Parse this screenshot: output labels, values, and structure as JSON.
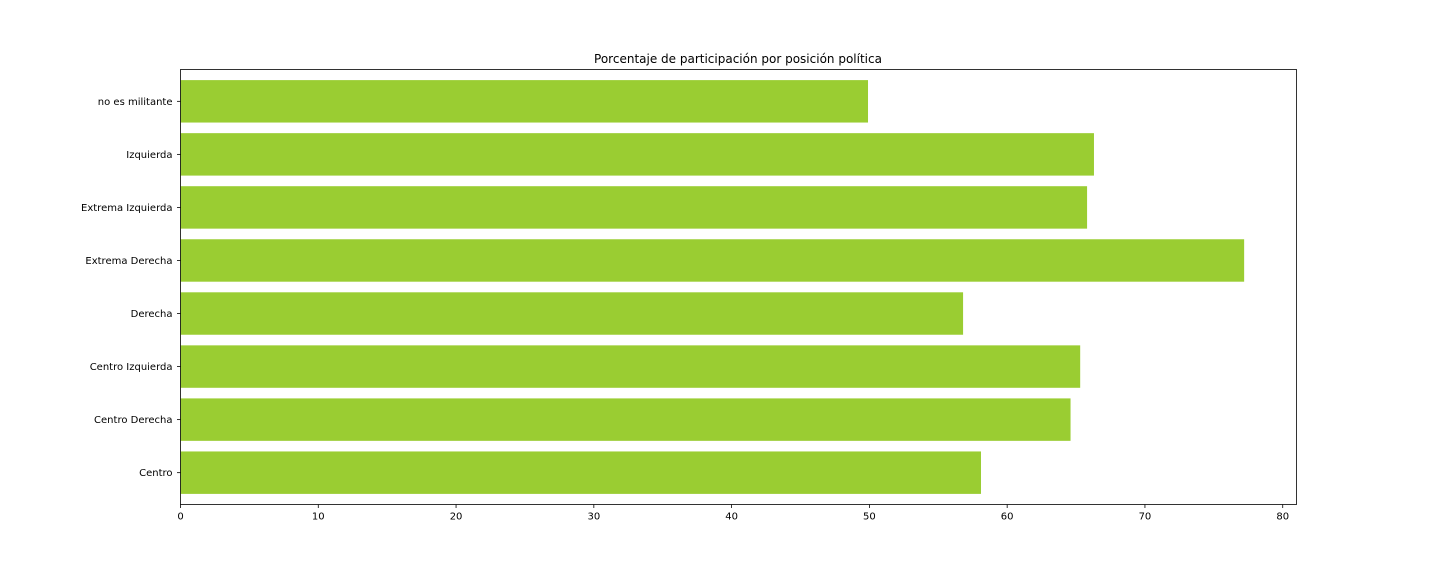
{
  "chart_data": {
    "type": "bar",
    "orientation": "horizontal",
    "title": "Porcentaje de participación por posición política",
    "xlabel": "",
    "ylabel": "",
    "categories": [
      "Centro",
      "Centro Derecha",
      "Centro Izquierda",
      "Derecha",
      "Extrema Derecha",
      "Extrema Izquierda",
      "Izquierda",
      "no es militante"
    ],
    "values": [
      58.1,
      64.6,
      65.3,
      56.8,
      77.2,
      65.8,
      66.3,
      49.9
    ],
    "xlim": [
      0,
      81
    ],
    "xticks": [
      0,
      10,
      20,
      30,
      40,
      50,
      60,
      70,
      80
    ],
    "bar_color": "#9acd32",
    "grid": false,
    "legend": "none"
  }
}
